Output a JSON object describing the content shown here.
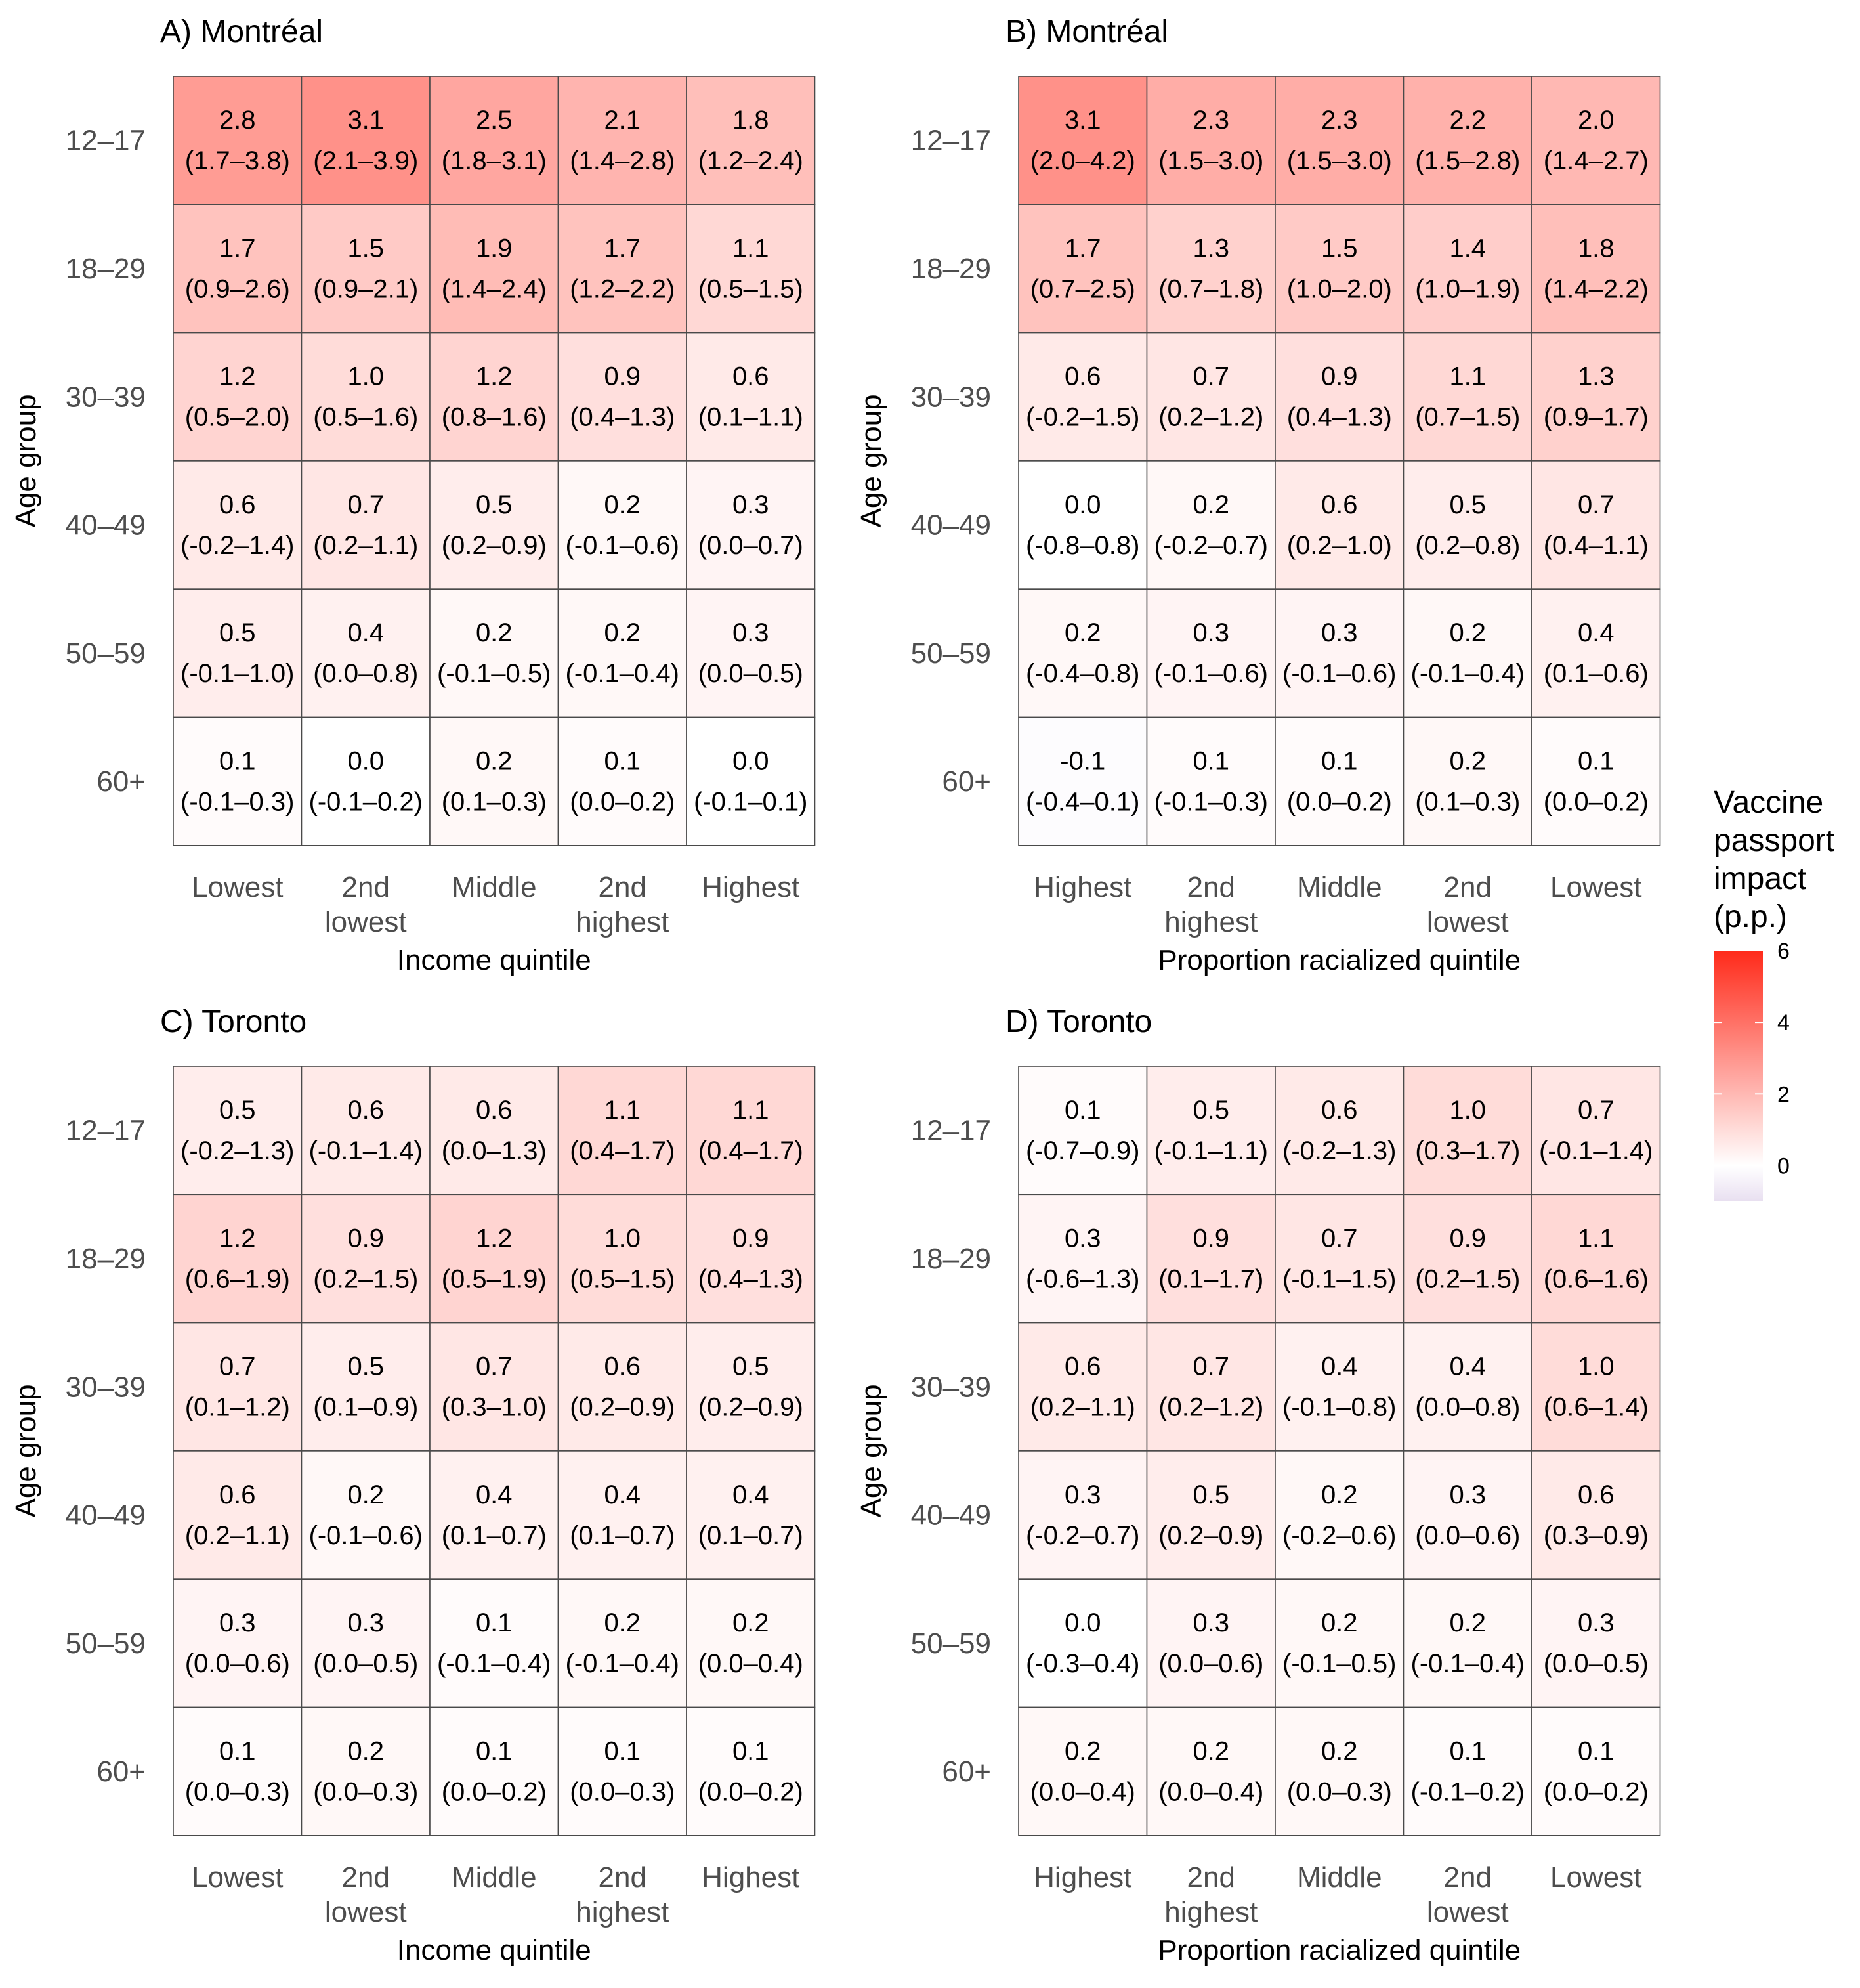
{
  "legend": {
    "title_lines": [
      "Vaccine",
      "passport",
      "impact",
      "(p.p.)"
    ],
    "ticks": [
      6,
      4,
      2,
      0
    ],
    "range": [
      -1,
      6
    ],
    "colors": {
      "low": "#e8dff0",
      "mid": "#ffffff",
      "high": "#ff2a1a",
      "border": "#555555"
    }
  },
  "chart_data": [
    {
      "type": "heatmap",
      "title": "A) Montréal",
      "xlabel": "Income quintile",
      "ylabel": "Age group",
      "x_categories": [
        "Lowest",
        "2nd lowest",
        "Middle",
        "2nd highest",
        "Highest"
      ],
      "y_categories": [
        "12–17",
        "18–29",
        "30–39",
        "40–49",
        "50–59",
        "60+"
      ],
      "values": [
        [
          2.8,
          3.1,
          2.5,
          2.1,
          1.8
        ],
        [
          1.7,
          1.5,
          1.9,
          1.7,
          1.1
        ],
        [
          1.2,
          1.0,
          1.2,
          0.9,
          0.6
        ],
        [
          0.6,
          0.7,
          0.5,
          0.2,
          0.3
        ],
        [
          0.5,
          0.4,
          0.2,
          0.2,
          0.3
        ],
        [
          0.1,
          0.0,
          0.2,
          0.1,
          0.0
        ]
      ],
      "labels": [
        [
          "2.8",
          "3.1",
          "2.5",
          "2.1",
          "1.8"
        ],
        [
          "1.7",
          "1.5",
          "1.9",
          "1.7",
          "1.1"
        ],
        [
          "1.2",
          "1.0",
          "1.2",
          "0.9",
          "0.6"
        ],
        [
          "0.6",
          "0.7",
          "0.5",
          "0.2",
          "0.3"
        ],
        [
          "0.5",
          "0.4",
          "0.2",
          "0.2",
          "0.3"
        ],
        [
          "0.1",
          "0.0",
          "0.2",
          "0.1",
          "0.0"
        ]
      ],
      "ci": [
        [
          "(1.7–3.8)",
          "(2.1–3.9)",
          "(1.8–3.1)",
          "(1.4–2.8)",
          "(1.2–2.4)"
        ],
        [
          "(0.9–2.6)",
          "(0.9–2.1)",
          "(1.4–2.4)",
          "(1.2–2.2)",
          "(0.5–1.5)"
        ],
        [
          "(0.5–2.0)",
          "(0.5–1.6)",
          "(0.8–1.6)",
          "(0.4–1.3)",
          "(0.1–1.1)"
        ],
        [
          "(-0.2–1.4)",
          "(0.2–1.1)",
          "(0.2–0.9)",
          "(-0.1–0.6)",
          "(0.0–0.7)"
        ],
        [
          "(-0.1–1.0)",
          "(0.0–0.8)",
          "(-0.1–0.5)",
          "(-0.1–0.4)",
          "(0.0–0.5)"
        ],
        [
          "(-0.1–0.3)",
          "(-0.1–0.2)",
          "(0.1–0.3)",
          "(0.0–0.2)",
          "(-0.1–0.1)"
        ]
      ]
    },
    {
      "type": "heatmap",
      "title": "B) Montréal",
      "xlabel": "Proportion racialized quintile",
      "ylabel": "Age group",
      "x_categories": [
        "Highest",
        "2nd highest",
        "Middle",
        "2nd lowest",
        "Lowest"
      ],
      "y_categories": [
        "12–17",
        "18–29",
        "30–39",
        "40–49",
        "50–59",
        "60+"
      ],
      "values": [
        [
          3.1,
          2.3,
          2.3,
          2.2,
          2.0
        ],
        [
          1.7,
          1.3,
          1.5,
          1.4,
          1.8
        ],
        [
          0.6,
          0.7,
          0.9,
          1.1,
          1.3
        ],
        [
          0.0,
          0.2,
          0.6,
          0.5,
          0.7
        ],
        [
          0.2,
          0.3,
          0.3,
          0.2,
          0.4
        ],
        [
          -0.1,
          0.1,
          0.1,
          0.2,
          0.1
        ]
      ],
      "labels": [
        [
          "3.1",
          "2.3",
          "2.3",
          "2.2",
          "2.0"
        ],
        [
          "1.7",
          "1.3",
          "1.5",
          "1.4",
          "1.8"
        ],
        [
          "0.6",
          "0.7",
          "0.9",
          "1.1",
          "1.3"
        ],
        [
          "0.0",
          "0.2",
          "0.6",
          "0.5",
          "0.7"
        ],
        [
          "0.2",
          "0.3",
          "0.3",
          "0.2",
          "0.4"
        ],
        [
          "-0.1",
          "0.1",
          "0.1",
          "0.2",
          "0.1"
        ]
      ],
      "ci": [
        [
          "(2.0–4.2)",
          "(1.5–3.0)",
          "(1.5–3.0)",
          "(1.5–2.8)",
          "(1.4–2.7)"
        ],
        [
          "(0.7–2.5)",
          "(0.7–1.8)",
          "(1.0–2.0)",
          "(1.0–1.9)",
          "(1.4–2.2)"
        ],
        [
          "(-0.2–1.5)",
          "(0.2–1.2)",
          "(0.4–1.3)",
          "(0.7–1.5)",
          "(0.9–1.7)"
        ],
        [
          "(-0.8–0.8)",
          "(-0.2–0.7)",
          "(0.2–1.0)",
          "(0.2–0.8)",
          "(0.4–1.1)"
        ],
        [
          "(-0.4–0.8)",
          "(-0.1–0.6)",
          "(-0.1–0.6)",
          "(-0.1–0.4)",
          "(0.1–0.6)"
        ],
        [
          "(-0.4–0.1)",
          "(-0.1–0.3)",
          "(0.0–0.2)",
          "(0.1–0.3)",
          "(0.0–0.2)"
        ]
      ]
    },
    {
      "type": "heatmap",
      "title": "C) Toronto",
      "xlabel": "Income quintile",
      "ylabel": "Age group",
      "x_categories": [
        "Lowest",
        "2nd lowest",
        "Middle",
        "2nd highest",
        "Highest"
      ],
      "y_categories": [
        "12–17",
        "18–29",
        "30–39",
        "40–49",
        "50–59",
        "60+"
      ],
      "values": [
        [
          0.5,
          0.6,
          0.6,
          1.1,
          1.1
        ],
        [
          1.2,
          0.9,
          1.2,
          1.0,
          0.9
        ],
        [
          0.7,
          0.5,
          0.7,
          0.6,
          0.5
        ],
        [
          0.6,
          0.2,
          0.4,
          0.4,
          0.4
        ],
        [
          0.3,
          0.3,
          0.1,
          0.2,
          0.2
        ],
        [
          0.1,
          0.2,
          0.1,
          0.1,
          0.1
        ]
      ],
      "labels": [
        [
          "0.5",
          "0.6",
          "0.6",
          "1.1",
          "1.1"
        ],
        [
          "1.2",
          "0.9",
          "1.2",
          "1.0",
          "0.9"
        ],
        [
          "0.7",
          "0.5",
          "0.7",
          "0.6",
          "0.5"
        ],
        [
          "0.6",
          "0.2",
          "0.4",
          "0.4",
          "0.4"
        ],
        [
          "0.3",
          "0.3",
          "0.1",
          "0.2",
          "0.2"
        ],
        [
          "0.1",
          "0.2",
          "0.1",
          "0.1",
          "0.1"
        ]
      ],
      "ci": [
        [
          "(-0.2–1.3)",
          "(-0.1–1.4)",
          "(0.0–1.3)",
          "(0.4–1.7)",
          "(0.4–1.7)"
        ],
        [
          "(0.6–1.9)",
          "(0.2–1.5)",
          "(0.5–1.9)",
          "(0.5–1.5)",
          "(0.4–1.3)"
        ],
        [
          "(0.1–1.2)",
          "(0.1–0.9)",
          "(0.3–1.0)",
          "(0.2–0.9)",
          "(0.2–0.9)"
        ],
        [
          "(0.2–1.1)",
          "(-0.1–0.6)",
          "(0.1–0.7)",
          "(0.1–0.7)",
          "(0.1–0.7)"
        ],
        [
          "(0.0–0.6)",
          "(0.0–0.5)",
          "(-0.1–0.4)",
          "(-0.1–0.4)",
          "(0.0–0.4)"
        ],
        [
          "(0.0–0.3)",
          "(0.0–0.3)",
          "(0.0–0.2)",
          "(0.0–0.3)",
          "(0.0–0.2)"
        ]
      ]
    },
    {
      "type": "heatmap",
      "title": "D) Toronto",
      "xlabel": "Proportion racialized quintile",
      "ylabel": "Age group",
      "x_categories": [
        "Highest",
        "2nd highest",
        "Middle",
        "2nd lowest",
        "Lowest"
      ],
      "y_categories": [
        "12–17",
        "18–29",
        "30–39",
        "40–49",
        "50–59",
        "60+"
      ],
      "values": [
        [
          0.1,
          0.5,
          0.6,
          1.0,
          0.7
        ],
        [
          0.3,
          0.9,
          0.7,
          0.9,
          1.1
        ],
        [
          0.6,
          0.7,
          0.4,
          0.4,
          1.0
        ],
        [
          0.3,
          0.5,
          0.2,
          0.3,
          0.6
        ],
        [
          0.0,
          0.3,
          0.2,
          0.2,
          0.3
        ],
        [
          0.2,
          0.2,
          0.2,
          0.1,
          0.1
        ]
      ],
      "labels": [
        [
          "0.1",
          "0.5",
          "0.6",
          "1.0",
          "0.7"
        ],
        [
          "0.3",
          "0.9",
          "0.7",
          "0.9",
          "1.1"
        ],
        [
          "0.6",
          "0.7",
          "0.4",
          "0.4",
          "1.0"
        ],
        [
          "0.3",
          "0.5",
          "0.2",
          "0.3",
          "0.6"
        ],
        [
          "0.0",
          "0.3",
          "0.2",
          "0.2",
          "0.3"
        ],
        [
          "0.2",
          "0.2",
          "0.2",
          "0.1",
          "0.1"
        ]
      ],
      "ci": [
        [
          "(-0.7–0.9)",
          "(-0.1–1.1)",
          "(-0.2–1.3)",
          "(0.3–1.7)",
          "(-0.1–1.4)"
        ],
        [
          "(-0.6–1.3)",
          "(0.1–1.7)",
          "(-0.1–1.5)",
          "(0.2–1.5)",
          "(0.6–1.6)"
        ],
        [
          "(0.2–1.1)",
          "(0.2–1.2)",
          "(-0.1–0.8)",
          "(0.0–0.8)",
          "(0.6–1.4)"
        ],
        [
          "(-0.2–0.7)",
          "(0.2–0.9)",
          "(-0.2–0.6)",
          "(0.0–0.6)",
          "(0.3–0.9)"
        ],
        [
          "(-0.3–0.4)",
          "(0.0–0.6)",
          "(-0.1–0.5)",
          "(-0.1–0.4)",
          "(0.0–0.5)"
        ],
        [
          "(0.0–0.4)",
          "(0.0–0.4)",
          "(0.0–0.3)",
          "(-0.1–0.2)",
          "(0.0–0.2)"
        ]
      ]
    }
  ]
}
